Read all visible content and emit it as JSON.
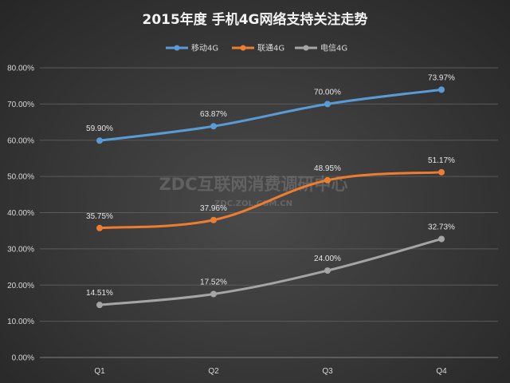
{
  "chart_data": {
    "type": "line",
    "title": "2015年度 手机4G网络支持关注走势",
    "categories": [
      "Q1",
      "Q2",
      "Q3",
      "Q4"
    ],
    "series": [
      {
        "name": "移动4G",
        "color": "#5b9bd5",
        "values": [
          59.9,
          63.87,
          70.0,
          73.97
        ],
        "labels": [
          "59.90%",
          "63.87%",
          "70.00%",
          "73.97%"
        ]
      },
      {
        "name": "联通4G",
        "color": "#ed7d31",
        "values": [
          35.75,
          37.96,
          48.95,
          51.17
        ],
        "labels": [
          "35.75%",
          "37.96%",
          "48.95%",
          "51.17%"
        ]
      },
      {
        "name": "电信4G",
        "color": "#a5a5a5",
        "values": [
          14.51,
          17.52,
          24.0,
          32.73
        ],
        "labels": [
          "14.51%",
          "17.52%",
          "24.00%",
          "32.73%"
        ]
      }
    ],
    "ylim": [
      0,
      80
    ],
    "yticks": [
      "0.00%",
      "10.00%",
      "20.00%",
      "30.00%",
      "40.00%",
      "50.00%",
      "60.00%",
      "70.00%",
      "80.00%"
    ],
    "grid": true,
    "legend": "top-center"
  },
  "watermark": {
    "main": "ZDC互联网消费调研中心",
    "sub": "ZDC.ZOL.COM.CN"
  }
}
